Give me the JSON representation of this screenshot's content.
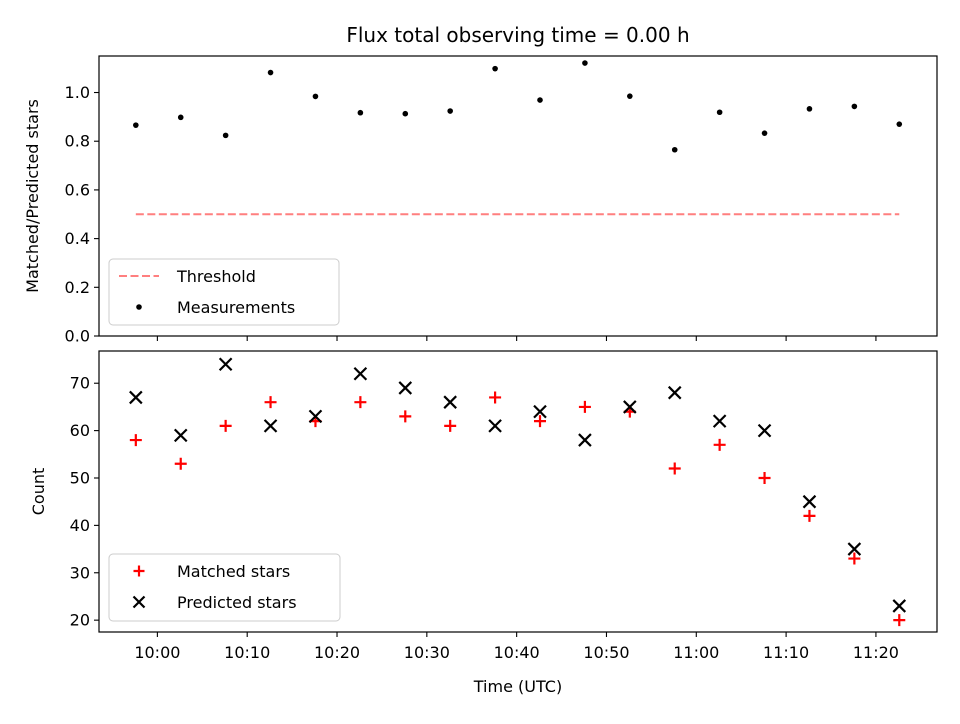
{
  "chart_data": {
    "type": "scatter",
    "title": "Flux total observing time = 0.00 h",
    "xlabel": "Time (UTC)",
    "x_tick_labels": [
      "10:00",
      "10:10",
      "10:20",
      "10:30",
      "10:40",
      "10:50",
      "11:00",
      "11:10",
      "11:20"
    ],
    "x_tick_minutes": [
      600,
      610,
      620,
      630,
      640,
      650,
      660,
      670,
      680
    ],
    "xlim_minutes": [
      593.5,
      686.8
    ],
    "times_minutes": [
      597.6,
      602.6,
      607.6,
      612.6,
      617.6,
      622.6,
      627.6,
      632.6,
      637.6,
      642.6,
      647.6,
      652.6,
      657.6,
      662.6,
      667.6,
      672.6,
      677.6,
      682.6
    ],
    "panels": [
      {
        "ylabel": "Matched/Predicted stars",
        "ylim": [
          0.0,
          1.15
        ],
        "y_ticks": [
          "0.0",
          "0.2",
          "0.4",
          "0.6",
          "0.8",
          "1.0"
        ],
        "y_tick_values": [
          0.0,
          0.2,
          0.4,
          0.6,
          0.8,
          1.0
        ],
        "legend_position": "lower-left",
        "series": [
          {
            "name": "Threshold",
            "kind": "dashed-line",
            "color": "#ff7f7f",
            "value": 0.5,
            "x_range_minutes": [
              597.6,
              682.6
            ]
          },
          {
            "name": "Measurements",
            "kind": "dot",
            "color": "#000000",
            "values": [
              0.866,
              0.898,
              0.824,
              1.082,
              0.984,
              0.917,
              0.913,
              0.924,
              1.098,
              0.969,
              1.121,
              0.985,
              0.765,
              0.919,
              0.833,
              0.933,
              0.943,
              0.87
            ]
          }
        ]
      },
      {
        "ylabel": "Count",
        "ylim": [
          17.5,
          76.8
        ],
        "y_ticks": [
          "20",
          "30",
          "40",
          "50",
          "60",
          "70"
        ],
        "y_tick_values": [
          20,
          30,
          40,
          50,
          60,
          70
        ],
        "legend_position": "lower-left",
        "series": [
          {
            "name": "Matched stars",
            "kind": "plus",
            "color": "#ff0000",
            "values": [
              58,
              53,
              61,
              66,
              62,
              66,
              63,
              61,
              67,
              62,
              65,
              64,
              52,
              57,
              50,
              42,
              33,
              20
            ]
          },
          {
            "name": "Predicted stars",
            "kind": "x",
            "color": "#000000",
            "values": [
              67,
              59,
              74,
              61,
              63,
              72,
              69,
              66,
              61,
              64,
              58,
              65,
              68,
              62,
              60,
              45,
              35,
              23
            ]
          }
        ]
      }
    ]
  }
}
